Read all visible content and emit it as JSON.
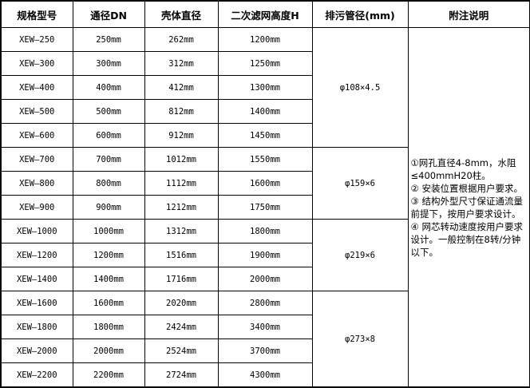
{
  "headers": [
    "规格型号",
    "通径DN",
    "壳体直径",
    "二次滤网高度H",
    "排污管径(mm)",
    "附注说明"
  ],
  "rows": [
    [
      "XEW—250",
      "250mm",
      "262mm",
      "1200mm"
    ],
    [
      "XEW—300",
      "300mm",
      "312mm",
      "1250mm"
    ],
    [
      "XEW—400",
      "400mm",
      "412mm",
      "1300mm"
    ],
    [
      "XEW—500",
      "500mm",
      "812mm",
      "1400mm"
    ],
    [
      "XEW—600",
      "600mm",
      "912mm",
      "1450mm"
    ],
    [
      "XEW—700",
      "700mm",
      "1012mm",
      "1550mm"
    ],
    [
      "XEW—800",
      "800mm",
      "1112mm",
      "1600mm"
    ],
    [
      "XEW—900",
      "900mm",
      "1212mm",
      "1750mm"
    ],
    [
      "XEW—1000",
      "1000mm",
      "1312mm",
      "1800mm"
    ],
    [
      "XEW—1200",
      "1200mm",
      "1516mm",
      "1900mm"
    ],
    [
      "XEW—1400",
      "1400mm",
      "1716mm",
      "2000mm"
    ],
    [
      "XEW—1600",
      "1600mm",
      "2020mm",
      "2800mm"
    ],
    [
      "XEW—1800",
      "1800mm",
      "2424mm",
      "3400mm"
    ],
    [
      "XEW—2000",
      "2000mm",
      "2524mm",
      "3700mm"
    ],
    [
      "XEW—2200",
      "2200mm",
      "2724mm",
      "4300mm"
    ]
  ],
  "pipe_groups": [
    {
      "label": "φ108×4.5",
      "rows": 5
    },
    {
      "label": "φ159×6",
      "rows": 3
    },
    {
      "label": "φ219×6",
      "rows": 3
    },
    {
      "label": "φ273×8",
      "rows": 4
    }
  ],
  "notes": [
    "①网孔直径4-8mm，水阻≤400mmH20柱。",
    "② 安装位置根据用户要求。",
    "③ 结构外型尺寸保证通流量前提下，按用户要求设计。",
    "④ 网芯转动速度按用户要求设计。一般控制在8转/分钟以下。"
  ]
}
